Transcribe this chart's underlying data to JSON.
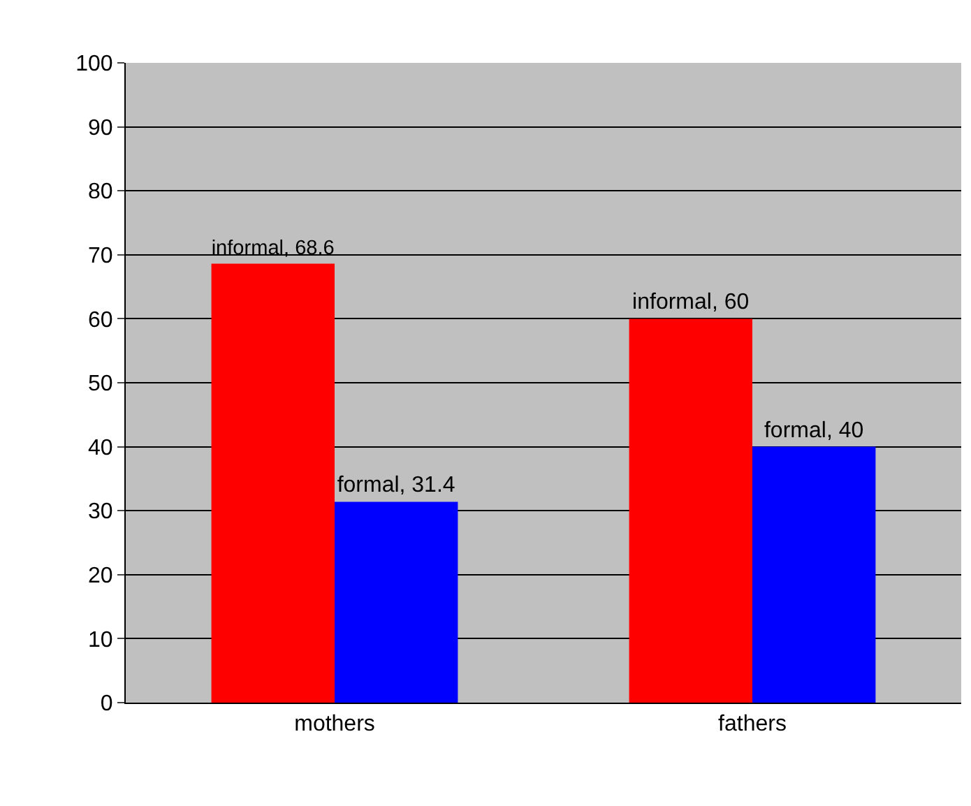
{
  "chart_data": {
    "type": "bar",
    "categories": [
      "mothers",
      "fathers"
    ],
    "series": [
      {
        "color": "#ff0000",
        "values": [
          68.6,
          60
        ],
        "value_labels": [
          "informal, 68.6",
          "informal, 60"
        ]
      },
      {
        "color": "#0000ff",
        "values": [
          31.4,
          40
        ],
        "value_labels": [
          "formal, 31.4",
          "formal, 40"
        ]
      }
    ],
    "ylim": [
      0,
      100
    ],
    "yticks": [
      0,
      10,
      20,
      30,
      40,
      50,
      60,
      70,
      80,
      90,
      100
    ],
    "grid": "y",
    "legend": false
  }
}
